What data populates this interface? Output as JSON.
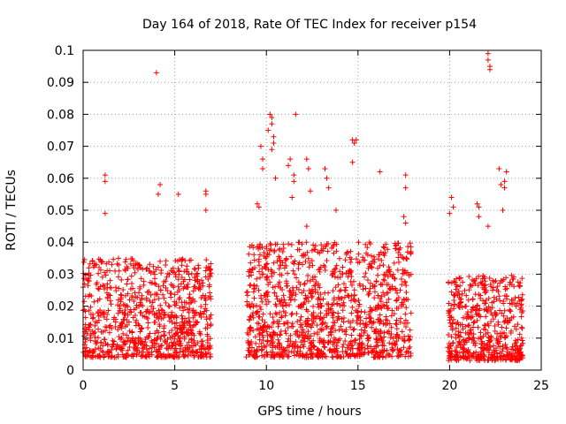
{
  "chart_data": {
    "type": "scatter",
    "title": "Day 164 of 2018, Rate Of TEC Index for receiver p154",
    "xlabel": "GPS time / hours",
    "ylabel": "ROTI / TECUs",
    "xlim": [
      0,
      25
    ],
    "ylim": [
      0,
      0.1
    ],
    "xticks": [
      0,
      5,
      10,
      15,
      20,
      25
    ],
    "xtick_labels": [
      "0",
      "5",
      "10",
      "15",
      "20",
      "25"
    ],
    "yticks": [
      0,
      0.01,
      0.02,
      0.03,
      0.04,
      0.05,
      0.06,
      0.07,
      0.08,
      0.09,
      0.1
    ],
    "ytick_labels": [
      "0",
      "0.01",
      "0.02",
      "0.03",
      "0.04",
      "0.05",
      "0.06",
      "0.07",
      "0.08",
      "0.09",
      "0.1"
    ],
    "grid": true,
    "marker": "+",
    "color": "#ff0000",
    "series": [
      {
        "name": "ROTI",
        "segments": [
          {
            "x_range": [
              0.0,
              7.0
            ],
            "typical_range": [
              0.004,
              0.035
            ],
            "point_count": 900
          },
          {
            "x_range": [
              8.9,
              17.9
            ],
            "typical_range": [
              0.004,
              0.04
            ],
            "point_count": 1200
          },
          {
            "x_range": [
              19.9,
              24.0
            ],
            "typical_range": [
              0.003,
              0.03
            ],
            "point_count": 550
          }
        ],
        "outliers": [
          {
            "x": 1.2,
            "y": 0.061
          },
          {
            "x": 1.2,
            "y": 0.059
          },
          {
            "x": 1.2,
            "y": 0.049
          },
          {
            "x": 4.0,
            "y": 0.093
          },
          {
            "x": 4.2,
            "y": 0.058
          },
          {
            "x": 4.1,
            "y": 0.055
          },
          {
            "x": 5.2,
            "y": 0.055
          },
          {
            "x": 6.7,
            "y": 0.056
          },
          {
            "x": 6.7,
            "y": 0.055
          },
          {
            "x": 6.7,
            "y": 0.05
          },
          {
            "x": 9.7,
            "y": 0.07
          },
          {
            "x": 9.8,
            "y": 0.066
          },
          {
            "x": 9.8,
            "y": 0.063
          },
          {
            "x": 9.5,
            "y": 0.052
          },
          {
            "x": 9.6,
            "y": 0.051
          },
          {
            "x": 10.2,
            "y": 0.08
          },
          {
            "x": 10.3,
            "y": 0.079
          },
          {
            "x": 10.3,
            "y": 0.077
          },
          {
            "x": 10.4,
            "y": 0.073
          },
          {
            "x": 10.4,
            "y": 0.071
          },
          {
            "x": 10.3,
            "y": 0.069
          },
          {
            "x": 10.1,
            "y": 0.075
          },
          {
            "x": 10.5,
            "y": 0.06
          },
          {
            "x": 11.2,
            "y": 0.064
          },
          {
            "x": 11.3,
            "y": 0.066
          },
          {
            "x": 11.5,
            "y": 0.061
          },
          {
            "x": 11.5,
            "y": 0.059
          },
          {
            "x": 11.6,
            "y": 0.08
          },
          {
            "x": 11.4,
            "y": 0.054
          },
          {
            "x": 12.2,
            "y": 0.066
          },
          {
            "x": 12.3,
            "y": 0.063
          },
          {
            "x": 12.4,
            "y": 0.056
          },
          {
            "x": 12.2,
            "y": 0.045
          },
          {
            "x": 13.2,
            "y": 0.063
          },
          {
            "x": 13.3,
            "y": 0.06
          },
          {
            "x": 13.4,
            "y": 0.057
          },
          {
            "x": 13.8,
            "y": 0.05
          },
          {
            "x": 14.7,
            "y": 0.072
          },
          {
            "x": 14.8,
            "y": 0.071
          },
          {
            "x": 14.9,
            "y": 0.072
          },
          {
            "x": 14.7,
            "y": 0.065
          },
          {
            "x": 16.2,
            "y": 0.062
          },
          {
            "x": 17.6,
            "y": 0.061
          },
          {
            "x": 17.6,
            "y": 0.057
          },
          {
            "x": 17.5,
            "y": 0.048
          },
          {
            "x": 17.6,
            "y": 0.046
          },
          {
            "x": 20.1,
            "y": 0.054
          },
          {
            "x": 20.2,
            "y": 0.051
          },
          {
            "x": 20.0,
            "y": 0.049
          },
          {
            "x": 21.5,
            "y": 0.052
          },
          {
            "x": 21.6,
            "y": 0.051
          },
          {
            "x": 21.6,
            "y": 0.048
          },
          {
            "x": 22.1,
            "y": 0.099
          },
          {
            "x": 22.1,
            "y": 0.097
          },
          {
            "x": 22.2,
            "y": 0.095
          },
          {
            "x": 22.2,
            "y": 0.094
          },
          {
            "x": 22.1,
            "y": 0.045
          },
          {
            "x": 22.7,
            "y": 0.063
          },
          {
            "x": 22.8,
            "y": 0.058
          },
          {
            "x": 23.0,
            "y": 0.059
          },
          {
            "x": 23.0,
            "y": 0.057
          },
          {
            "x": 23.1,
            "y": 0.062
          },
          {
            "x": 22.9,
            "y": 0.05
          }
        ]
      }
    ]
  }
}
